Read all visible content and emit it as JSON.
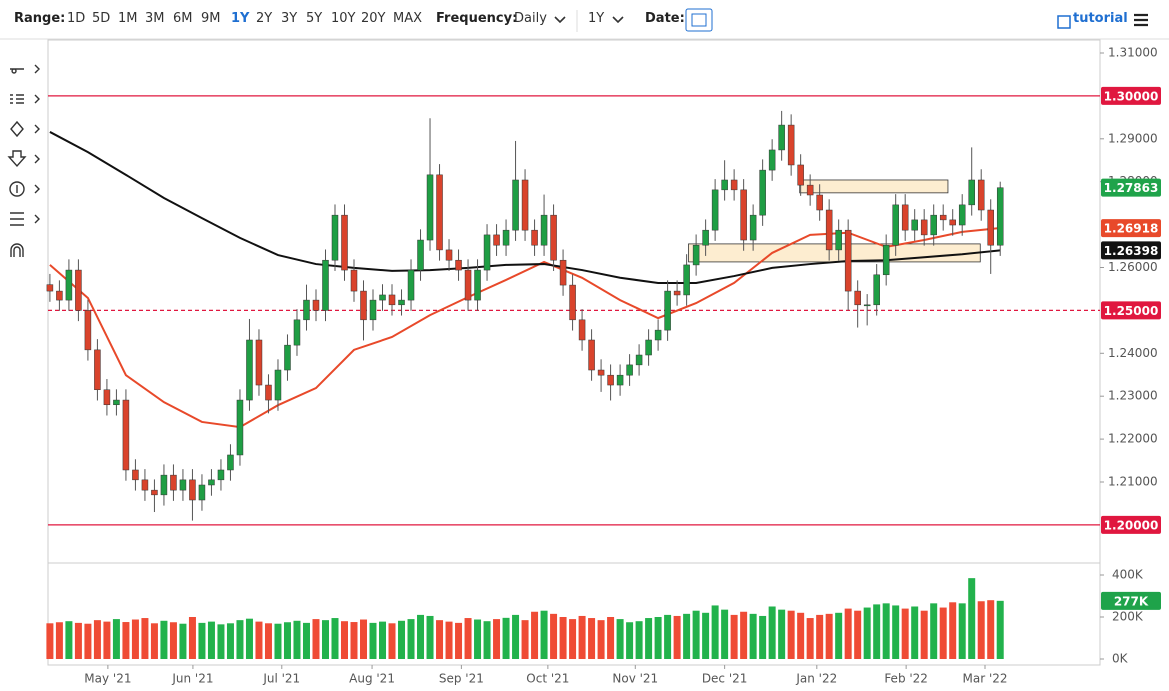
{
  "toolbar": {
    "range_label": "Range:",
    "ranges": [
      "1D",
      "5D",
      "1M",
      "3M",
      "6M",
      "9M",
      "1Y",
      "2Y",
      "3Y",
      "5Y",
      "10Y",
      "20Y",
      "MAX"
    ],
    "frequency_label": "Frequency:",
    "frequency": "Daily",
    "period": "1Y",
    "date_label": "Date:",
    "tutorial": "tutorial"
  },
  "chart_data": {
    "type": "candlestick",
    "grid": false,
    "up_color": "#1f9e44",
    "down_color": "#d9432c",
    "xlim": [
      -0.2,
      110.5
    ],
    "ylim": [
      1.19135,
      1.31303
    ],
    "xticks": [
      {
        "value": 6.1,
        "label": "May '21"
      },
      {
        "value": 15.05,
        "label": "Jun '21"
      },
      {
        "value": 24.4,
        "label": "Jul '21"
      },
      {
        "value": 33.9,
        "label": "Aug '21"
      },
      {
        "value": 43.3,
        "label": "Sep '21"
      },
      {
        "value": 52.4,
        "label": "Oct '21"
      },
      {
        "value": 61.6,
        "label": "Nov '21"
      },
      {
        "value": 71,
        "label": "Dec '21"
      },
      {
        "value": 80.7,
        "label": "Jan '22"
      },
      {
        "value": 90.1,
        "label": "Feb '22"
      },
      {
        "value": 98.4,
        "label": "Mar '22"
      }
    ],
    "yticks": [
      {
        "value": 1.31,
        "label": "1.31000"
      },
      {
        "value": 1.29,
        "label": "1.29000"
      },
      {
        "value": 1.28,
        "label": "1.28000"
      },
      {
        "value": 1.26,
        "label": "1.26000"
      },
      {
        "value": 1.24,
        "label": "1.24000"
      },
      {
        "value": 1.23,
        "label": "1.23000"
      },
      {
        "value": 1.22,
        "label": "1.22000"
      },
      {
        "value": 1.21,
        "label": "1.21000"
      }
    ],
    "open": [
      1.256,
      1.2545,
      1.2524,
      1.2594,
      1.25,
      1.2408,
      1.2315,
      1.228,
      1.2291,
      1.2128,
      1.2105,
      1.2081,
      1.207,
      1.2116,
      1.2081,
      1.2105,
      1.2058,
      1.2093,
      1.2105,
      1.2128,
      1.2163,
      1.2291,
      1.2431,
      1.2326,
      1.2291,
      1.2361,
      1.2419,
      1.2478,
      1.2524,
      1.25,
      1.2617,
      1.2722,
      1.2594,
      1.2545,
      1.2478,
      1.2524,
      1.2536,
      1.2513,
      1.2524,
      1.2594,
      1.2664,
      1.2816,
      1.2641,
      1.2617,
      1.2594,
      1.2524,
      1.2594,
      1.2676,
      1.2652,
      1.2687,
      1.2804,
      1.2687,
      1.2652,
      1.2722,
      1.2617,
      1.2559,
      1.2478,
      1.2431,
      1.2361,
      1.2349,
      1.2326,
      1.2349,
      1.2373,
      1.2396,
      1.2431,
      1.2454,
      1.2545,
      1.2536,
      1.2606,
      1.2652,
      1.2687,
      1.2781,
      1.2804,
      1.2781,
      1.2664,
      1.2722,
      1.2827,
      1.2874,
      1.2932,
      1.2839,
      1.2792,
      1.2769,
      1.2734,
      1.2641,
      1.2687,
      1.2545,
      1.2513,
      1.2513,
      1.2583,
      1.2652,
      1.2746,
      1.2687,
      1.2711,
      1.2676,
      1.2722,
      1.2711,
      1.2699,
      1.2746,
      1.2804,
      1.2734,
      1.2652
    ],
    "high": [
      1.2585,
      1.257,
      1.2619,
      1.2619,
      1.2525,
      1.2433,
      1.234,
      1.2316,
      1.2316,
      1.2153,
      1.213,
      1.2106,
      1.2141,
      1.2141,
      1.213,
      1.213,
      1.2118,
      1.213,
      1.2153,
      1.2188,
      1.2316,
      1.248,
      1.2456,
      1.2351,
      1.2386,
      1.2444,
      1.2503,
      1.256,
      1.2549,
      1.2642,
      1.2747,
      1.2747,
      1.2619,
      1.257,
      1.2549,
      1.2561,
      1.2561,
      1.2549,
      1.2619,
      1.2689,
      1.2948,
      1.2841,
      1.2666,
      1.2642,
      1.2619,
      1.2619,
      1.2701,
      1.2701,
      1.2712,
      1.2895,
      1.2829,
      1.2712,
      1.277,
      1.2747,
      1.2642,
      1.2584,
      1.2503,
      1.2456,
      1.2386,
      1.2374,
      1.2374,
      1.2398,
      1.2421,
      1.2456,
      1.2479,
      1.257,
      1.257,
      1.2631,
      1.2677,
      1.2712,
      1.2806,
      1.285,
      1.2829,
      1.2806,
      1.2747,
      1.2852,
      1.2899,
      1.2965,
      1.2957,
      1.2864,
      1.2817,
      1.2794,
      1.2759,
      1.2712,
      1.2712,
      1.257,
      1.2538,
      1.2608,
      1.2677,
      1.2771,
      1.2771,
      1.2736,
      1.2736,
      1.2747,
      1.2747,
      1.2736,
      1.2771,
      1.288,
      1.2829,
      1.2759,
      1.28
    ],
    "low": [
      1.252,
      1.2499,
      1.2499,
      1.2475,
      1.2383,
      1.229,
      1.2255,
      1.2255,
      1.2103,
      1.208,
      1.2056,
      1.203,
      1.2045,
      1.2056,
      1.2056,
      1.201,
      1.2033,
      1.2068,
      1.208,
      1.2103,
      1.2138,
      1.2266,
      1.2301,
      1.226,
      1.2266,
      1.2336,
      1.2394,
      1.2453,
      1.2475,
      1.2475,
      1.2592,
      1.2569,
      1.252,
      1.243,
      1.2453,
      1.2499,
      1.2488,
      1.2488,
      1.2499,
      1.2569,
      1.2639,
      1.2616,
      1.2592,
      1.2569,
      1.2499,
      1.2499,
      1.2569,
      1.2627,
      1.2627,
      1.2662,
      1.2662,
      1.2627,
      1.2627,
      1.2592,
      1.2534,
      1.2453,
      1.2406,
      1.2336,
      1.231,
      1.229,
      1.2301,
      1.2324,
      1.2348,
      1.2371,
      1.2406,
      1.2429,
      1.2511,
      1.2511,
      1.2581,
      1.2627,
      1.2662,
      1.2756,
      1.2756,
      1.2639,
      1.2639,
      1.2697,
      1.2802,
      1.2849,
      1.2814,
      1.2767,
      1.2744,
      1.2709,
      1.2616,
      1.2616,
      1.25,
      1.246,
      1.2465,
      1.2488,
      1.2558,
      1.2627,
      1.2662,
      1.2662,
      1.2651,
      1.2651,
      1.2686,
      1.2674,
      1.2674,
      1.2721,
      1.2709,
      1.2585,
      1.2627
    ],
    "close": [
      1.2545,
      1.2524,
      1.2594,
      1.25,
      1.2408,
      1.2315,
      1.228,
      1.2291,
      1.2128,
      1.2105,
      1.2081,
      1.207,
      1.2116,
      1.2081,
      1.2105,
      1.2058,
      1.2093,
      1.2105,
      1.2128,
      1.2163,
      1.2291,
      1.2431,
      1.2326,
      1.2291,
      1.2361,
      1.2419,
      1.2478,
      1.2524,
      1.25,
      1.2617,
      1.2722,
      1.2594,
      1.2545,
      1.2478,
      1.2524,
      1.2536,
      1.2513,
      1.2524,
      1.2594,
      1.2664,
      1.2816,
      1.2641,
      1.2617,
      1.2594,
      1.2524,
      1.2594,
      1.2676,
      1.2652,
      1.2687,
      1.2804,
      1.2687,
      1.2652,
      1.2722,
      1.2617,
      1.2559,
      1.2478,
      1.2431,
      1.2361,
      1.2349,
      1.2326,
      1.2349,
      1.2373,
      1.2396,
      1.2431,
      1.2454,
      1.2545,
      1.2536,
      1.2606,
      1.2652,
      1.2687,
      1.2781,
      1.2804,
      1.2781,
      1.2664,
      1.2722,
      1.2827,
      1.2874,
      1.2932,
      1.2839,
      1.2792,
      1.2769,
      1.2734,
      1.2641,
      1.2687,
      1.2545,
      1.2513,
      1.2513,
      1.2583,
      1.2652,
      1.2746,
      1.2687,
      1.2711,
      1.2676,
      1.2722,
      1.2711,
      1.2699,
      1.2746,
      1.2804,
      1.2734,
      1.2652,
      1.2786
    ],
    "moving_averages": [
      {
        "color": "#e8492a",
        "x": [
          0,
          4,
          8,
          12,
          16,
          20,
          24,
          28,
          32,
          36,
          40,
          44,
          48,
          52,
          56,
          60,
          64,
          68,
          72,
          76,
          80,
          84,
          88,
          92,
          96,
          100
        ],
        "values": [
          1.2606,
          1.2529,
          1.2349,
          1.2286,
          1.224,
          1.2228,
          1.2279,
          1.2319,
          1.2408,
          1.2438,
          1.2489,
          1.2531,
          1.2571,
          1.2613,
          1.2576,
          1.2524,
          1.2482,
          1.2517,
          1.2564,
          1.2634,
          1.2676,
          1.2681,
          1.2648,
          1.2664,
          1.2683,
          1.2692
        ]
      },
      {
        "color": "#111111",
        "x": [
          0,
          4,
          8,
          12,
          16,
          20,
          24,
          28,
          32,
          36,
          40,
          44,
          48,
          52,
          56,
          60,
          64,
          68,
          72,
          76,
          80,
          84,
          88,
          92,
          96,
          100
        ],
        "values": [
          1.2916,
          1.2869,
          1.2816,
          1.2762,
          1.2715,
          1.2669,
          1.2629,
          1.2608,
          1.2599,
          1.2592,
          1.2594,
          1.2599,
          1.2606,
          1.2608,
          1.2594,
          1.2576,
          1.2564,
          1.2564,
          1.258,
          1.2599,
          1.2608,
          1.2615,
          1.2617,
          1.2624,
          1.2631,
          1.264
        ]
      }
    ],
    "zones": [
      {
        "x": [
          78.9,
          94.5
        ],
        "y": [
          1.2774,
          1.2804
        ]
      },
      {
        "x": [
          67.2,
          97.9
        ],
        "y": [
          1.2613,
          1.2655
        ]
      }
    ],
    "levels": [
      {
        "value": 1.3,
        "label": "1.30000",
        "color": "#e0173f",
        "dashed": false
      },
      {
        "value": 1.25,
        "label": "1.25000",
        "color": "#e0173f",
        "dashed": true
      },
      {
        "value": 1.2,
        "label": "1.20000",
        "color": "#e0173f",
        "dashed": false
      }
    ],
    "markers": [
      {
        "value": 1.27863,
        "label": "1.27863",
        "color": "#1fa34a"
      },
      {
        "value": 1.26918,
        "label": "1.26918",
        "color": "#e8492a"
      },
      {
        "value": 1.26398,
        "label": "1.26398",
        "color": "#111111"
      }
    ],
    "volume": {
      "up_color": "#22b24c",
      "down_color": "#ef4b35",
      "ylim": [
        0,
        447600
      ],
      "yticks": [
        {
          "value": 400000,
          "label": "400K"
        },
        {
          "value": 200000,
          "label": "200K"
        },
        {
          "value": 0,
          "label": "0K"
        }
      ],
      "values": [
        170000,
        175000,
        180000,
        172000,
        168000,
        185000,
        178000,
        190000,
        176000,
        188000,
        195000,
        170000,
        182000,
        175000,
        168000,
        200000,
        172000,
        178000,
        165000,
        170000,
        185000,
        192000,
        178000,
        170000,
        168000,
        175000,
        182000,
        172000,
        190000,
        185000,
        195000,
        180000,
        176000,
        188000,
        172000,
        178000,
        170000,
        182000,
        190000,
        210000,
        205000,
        185000,
        178000,
        172000,
        195000,
        188000,
        180000,
        190000,
        196000,
        210000,
        185000,
        225000,
        230000,
        215000,
        200000,
        190000,
        205000,
        195000,
        185000,
        200000,
        190000,
        175000,
        180000,
        195000,
        200000,
        210000,
        205000,
        215000,
        230000,
        220000,
        255000,
        235000,
        210000,
        225000,
        215000,
        205000,
        250000,
        235000,
        230000,
        220000,
        195000,
        210000,
        215000,
        220000,
        240000,
        230000,
        245000,
        260000,
        265000,
        255000,
        240000,
        250000,
        230000,
        265000,
        245000,
        270000,
        265000,
        385000,
        275000,
        280000,
        277000
      ],
      "marker": {
        "value": 277000,
        "label": "277K",
        "color": "#1fa34a"
      }
    }
  }
}
